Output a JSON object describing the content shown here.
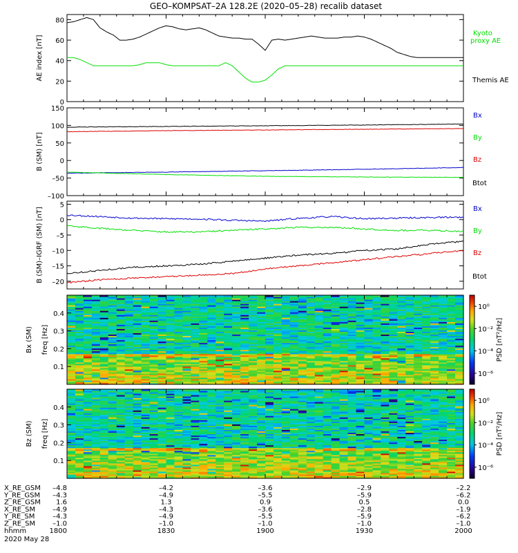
{
  "title": "GEO–KOMPSAT–2A 128.2E (2020–05–28) recalib dataset",
  "colors": {
    "black": "#000000",
    "green": "#00e000",
    "blue": "#0000cc",
    "red": "#dd0000",
    "frame": "#000000"
  },
  "chart_data": [
    {
      "type": "line",
      "name": "ae-panel",
      "ylabel": "AE index [nT]",
      "ylim": [
        0,
        85
      ],
      "yticks": [
        0,
        20,
        40,
        60,
        80
      ],
      "x": [
        0,
        2,
        4,
        6,
        8,
        10,
        12,
        14,
        16,
        18,
        20,
        22,
        24,
        26,
        28,
        30,
        32,
        34,
        36,
        38,
        40,
        42,
        44,
        46,
        48,
        50,
        52,
        54,
        56,
        58,
        60,
        62,
        64,
        66,
        68,
        70,
        72,
        74,
        76,
        78,
        80,
        82,
        84,
        86,
        88,
        90,
        92,
        94,
        96,
        98,
        100,
        102,
        104,
        106,
        108,
        110,
        112,
        114,
        116,
        118,
        120
      ],
      "series": [
        {
          "name": "Themis AE",
          "color": "#000000",
          "values": [
            77,
            78,
            80,
            82,
            80,
            72,
            68,
            65,
            60,
            60,
            61,
            63,
            66,
            69,
            72,
            74,
            73,
            71,
            70,
            71,
            72,
            70,
            67,
            64,
            63,
            62,
            62,
            61,
            61,
            56,
            50,
            60,
            61,
            60,
            61,
            62,
            63,
            64,
            63,
            62,
            62,
            62,
            63,
            63,
            64,
            63,
            61,
            58,
            55,
            52,
            48,
            46,
            44,
            43,
            43,
            43,
            43,
            43,
            43,
            43,
            43
          ]
        },
        {
          "name": "Kyoto proxy AE",
          "color": "#00e000",
          "values": [
            43,
            43,
            41,
            38,
            35,
            35,
            35,
            35,
            35,
            35,
            35,
            36,
            38,
            38,
            38,
            36,
            35,
            35,
            35,
            35,
            35,
            35,
            35,
            35,
            38,
            35,
            29,
            23,
            19,
            19,
            21,
            26,
            32,
            35,
            35,
            35,
            35,
            35,
            35,
            35,
            35,
            35,
            35,
            35,
            35,
            35,
            35,
            35,
            35,
            35,
            35,
            35,
            35,
            35,
            35,
            35,
            35,
            35,
            35,
            35,
            35
          ]
        }
      ]
    },
    {
      "type": "line",
      "name": "b-sm-panel",
      "ylabel": "B (SM) [nT]",
      "ylim": [
        -100,
        150
      ],
      "yticks": [
        -100,
        -50,
        0,
        50,
        100,
        150
      ],
      "x": [
        0,
        30,
        60,
        90,
        120
      ],
      "series": [
        {
          "name": "Btot",
          "color": "#000000",
          "values": [
            95,
            97,
            99,
            101,
            104
          ]
        },
        {
          "name": "Bz",
          "color": "#dd0000",
          "values": [
            82,
            85,
            87,
            89,
            91
          ]
        },
        {
          "name": "Bx",
          "color": "#0000cc",
          "values": [
            -36,
            -33,
            -29,
            -25,
            -20
          ]
        },
        {
          "name": "By",
          "color": "#00e000",
          "values": [
            -33,
            -40,
            -45,
            -47,
            -48
          ]
        }
      ],
      "legend": [
        "Bx",
        "By",
        "Bz",
        "Btot"
      ],
      "legend_colors": [
        "#0000cc",
        "#00e000",
        "#dd0000",
        "#000000"
      ]
    },
    {
      "type": "line",
      "name": "b-igrf-panel",
      "ylabel": "B (SM)–IGRF (SM) [nT]",
      "ylim": [
        -22.5,
        6
      ],
      "yticks": [
        -20,
        -15,
        -10,
        -5,
        0,
        5
      ],
      "x": [
        0,
        10,
        20,
        30,
        40,
        50,
        60,
        70,
        80,
        90,
        100,
        110,
        120
      ],
      "series": [
        {
          "name": "Bx",
          "color": "#0000cc",
          "values": [
            1.5,
            1.0,
            0.5,
            0.3,
            0.2,
            -0.2,
            -0.5,
            0.4,
            1.0,
            0.3,
            0.5,
            0.7,
            0.8
          ]
        },
        {
          "name": "By",
          "color": "#00e000",
          "values": [
            -2.0,
            -2.8,
            -3.5,
            -4.0,
            -4.0,
            -3.5,
            -3.0,
            -2.5,
            -2.5,
            -3.0,
            -3.5,
            -3.5,
            -3.8
          ]
        },
        {
          "name": "Btot",
          "color": "#000000",
          "values": [
            -17.5,
            -16.5,
            -15.5,
            -15.0,
            -14.5,
            -13.5,
            -12.5,
            -11.5,
            -11.0,
            -10.0,
            -9.5,
            -8.0,
            -7.0
          ]
        },
        {
          "name": "Bz",
          "color": "#dd0000",
          "values": [
            -20.5,
            -19.5,
            -19.0,
            -18.5,
            -18.0,
            -17.5,
            -16.0,
            -15.0,
            -14.0,
            -13.0,
            -12.0,
            -11.0,
            -10.0
          ]
        }
      ],
      "legend": [
        "Bx",
        "By",
        "Bz",
        "Btot"
      ],
      "legend_colors": [
        "#0000cc",
        "#00e000",
        "#dd0000",
        "#000000"
      ]
    },
    {
      "type": "heatmap",
      "name": "bx-spectrogram",
      "ylabel": "Bx (SM)",
      "ylabel2": "freq [Hz]",
      "ylim": [
        0,
        0.5
      ],
      "yticks": [
        0.1,
        0.2,
        0.3,
        0.4
      ],
      "colorbar_label": "PSD [nT²/Hz]",
      "colorbar_ticks": [
        "10⁰",
        "10⁻²",
        "10⁻⁴",
        "10⁻⁶"
      ],
      "colorbar_range_exp": [
        -7,
        1
      ],
      "seed": 7
    },
    {
      "type": "heatmap",
      "name": "bz-spectrogram",
      "ylabel": "Bz (SM)",
      "ylabel2": "freq [Hz]",
      "ylim": [
        0,
        0.5
      ],
      "yticks": [
        0.1,
        0.2,
        0.3,
        0.4
      ],
      "colorbar_label": "PSD [nT²/Hz]",
      "colorbar_ticks": [
        "10⁰",
        "10⁻²",
        "10⁻⁴",
        "10⁻⁶"
      ],
      "colorbar_range_exp": [
        -7,
        1
      ],
      "seed": 19
    }
  ],
  "ae_legend": [
    {
      "text": "Kyoto",
      "color": "#00e000"
    },
    {
      "text": "proxy AE",
      "color": "#00e000"
    },
    {
      "text": "Themis AE",
      "color": "#000000"
    }
  ],
  "ephemeris": {
    "rows": [
      {
        "label": "X_RE_GSM",
        "values": [
          "–4.8",
          "–4.2",
          "–3.6",
          "–2.9",
          "–2.2"
        ]
      },
      {
        "label": "Y_RE_GSM",
        "values": [
          "–4.3",
          "–4.9",
          "–5.5",
          "–5.9",
          "–6.2"
        ]
      },
      {
        "label": "Z_RE_GSM",
        "values": [
          "1.6",
          "1.3",
          "0.9",
          "0.5",
          "0.0"
        ]
      },
      {
        "label": "X_RE_SM",
        "values": [
          "–4.9",
          "–4.3",
          "–3.6",
          "–2.8",
          "–1.9"
        ]
      },
      {
        "label": "Y_RE_SM",
        "values": [
          "–4.3",
          "–4.9",
          "–5.5",
          "–5.9",
          "–6.2"
        ]
      },
      {
        "label": "Z_RE_SM",
        "values": [
          "–1.0",
          "–1.0",
          "–1.0",
          "–1.0",
          "–1.0"
        ]
      },
      {
        "label": "hhmm",
        "values": [
          "1800",
          "1830",
          "1900",
          "1930",
          "2000"
        ]
      }
    ],
    "date": "2020 May 28"
  }
}
